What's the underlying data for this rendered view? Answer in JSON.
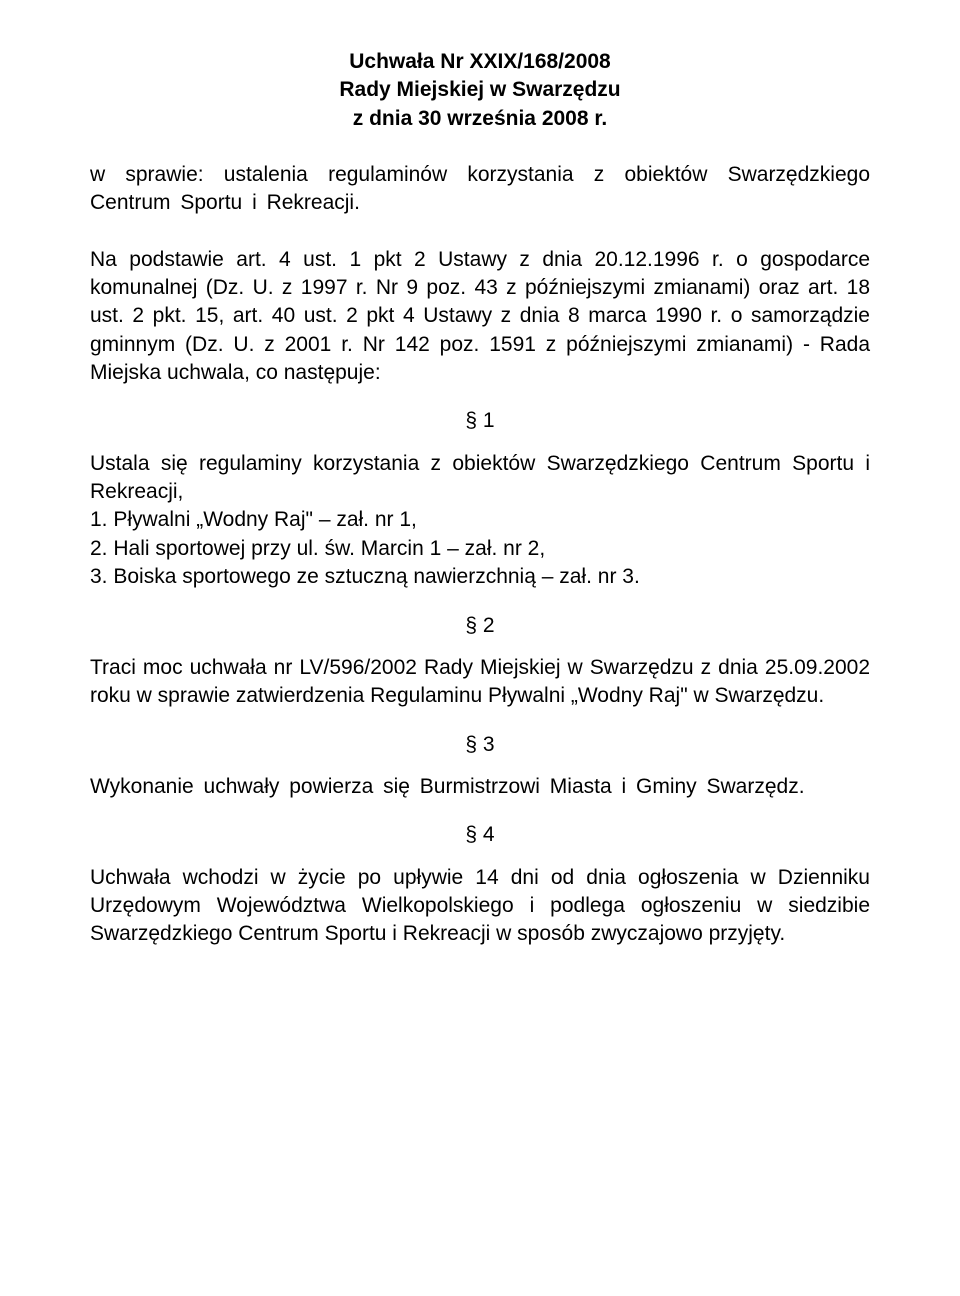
{
  "title": {
    "line1": "Uchwała Nr XXIX/168/2008",
    "line2": "Rady Miejskiej w Swarzędzu",
    "line3": "z dnia 30 września 2008 r."
  },
  "subject": "w sprawie: ustalenia regulaminów korzystania z obiektów Swarzędzkiego Centrum Sportu i Rekreacji.",
  "basis": "Na podstawie art. 4 ust. 1 pkt 2 Ustawy z dnia 20.12.1996 r. o gospodarce komunalnej (Dz. U. z 1997 r. Nr 9 poz. 43 z późniejszymi zmianami) oraz art. 18 ust. 2 pkt. 15, art. 40 ust. 2 pkt 4 Ustawy z dnia 8 marca 1990 r. o samorządzie gminnym (Dz. U. z 2001 r. Nr 142 poz. 1591 z późniejszymi zmianami) - Rada Miejska uchwala, co następuje:",
  "sections": {
    "s1": {
      "num": "§ 1",
      "intro": "Ustala się regulaminy korzystania z obiektów Swarzędzkiego Centrum Sportu i Rekreacji,",
      "item1": "1. Pływalni „Wodny Raj\" – zał. nr 1,",
      "item2": "2. Hali sportowej przy ul. św. Marcin 1 – zał. nr 2,",
      "item3": "3. Boiska sportowego ze sztuczną nawierzchnią – zał. nr 3."
    },
    "s2": {
      "num": "§ 2",
      "text": "Traci moc uchwała nr LV/596/2002 Rady Miejskiej w Swarzędzu z dnia 25.09.2002 roku w sprawie zatwierdzenia Regulaminu Pływalni „Wodny Raj\" w Swarzędzu."
    },
    "s3": {
      "num": "§ 3",
      "text": "Wykonanie uchwały powierza się Burmistrzowi Miasta i Gminy Swarzędz."
    },
    "s4": {
      "num": "§ 4",
      "text": "Uchwała wchodzi w życie po upływie 14 dni od dnia ogłoszenia w Dzienniku Urzędowym Województwa Wielkopolskiego i podlega ogłoszeniu w siedzibie Swarzędzkiego Centrum Sportu i Rekreacji w sposób zwyczajowo przyjęty."
    }
  }
}
